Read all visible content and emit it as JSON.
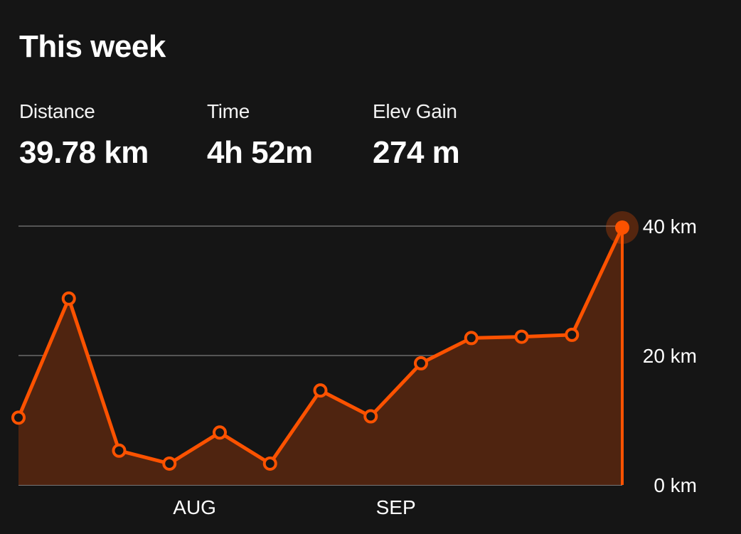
{
  "header": {
    "title": "This week"
  },
  "stats": [
    {
      "label": "Distance",
      "value": "39.78 km"
    },
    {
      "label": "Time",
      "value": "4h 52m"
    },
    {
      "label": "Elev Gain",
      "value": "274 m"
    }
  ],
  "colors": {
    "background": "#151515",
    "accent": "#fc5200",
    "area_fill": "#4f2410",
    "gridline": "#555555",
    "text": "#ffffff"
  },
  "chart_data": {
    "type": "area",
    "x": [
      "",
      "",
      "",
      "",
      "AUG",
      "",
      "",
      "",
      "SEP",
      "",
      "",
      "",
      ""
    ],
    "series": [
      {
        "values": [
          10.4,
          28.8,
          5.3,
          3.3,
          8.1,
          3.3,
          14.6,
          10.6,
          18.8,
          22.7,
          22.9,
          23.2,
          39.78
        ]
      }
    ],
    "y_ticks": [
      {
        "value": 0,
        "label": "0 km"
      },
      {
        "value": 20,
        "label": "20 km"
      },
      {
        "value": 40,
        "label": "40 km"
      }
    ],
    "x_tick_labels": [
      {
        "index": 3.5,
        "label": "AUG"
      },
      {
        "index": 7.5,
        "label": "SEP"
      }
    ],
    "ylim": [
      0,
      40
    ],
    "grid": true,
    "highlighted_point": "last"
  }
}
